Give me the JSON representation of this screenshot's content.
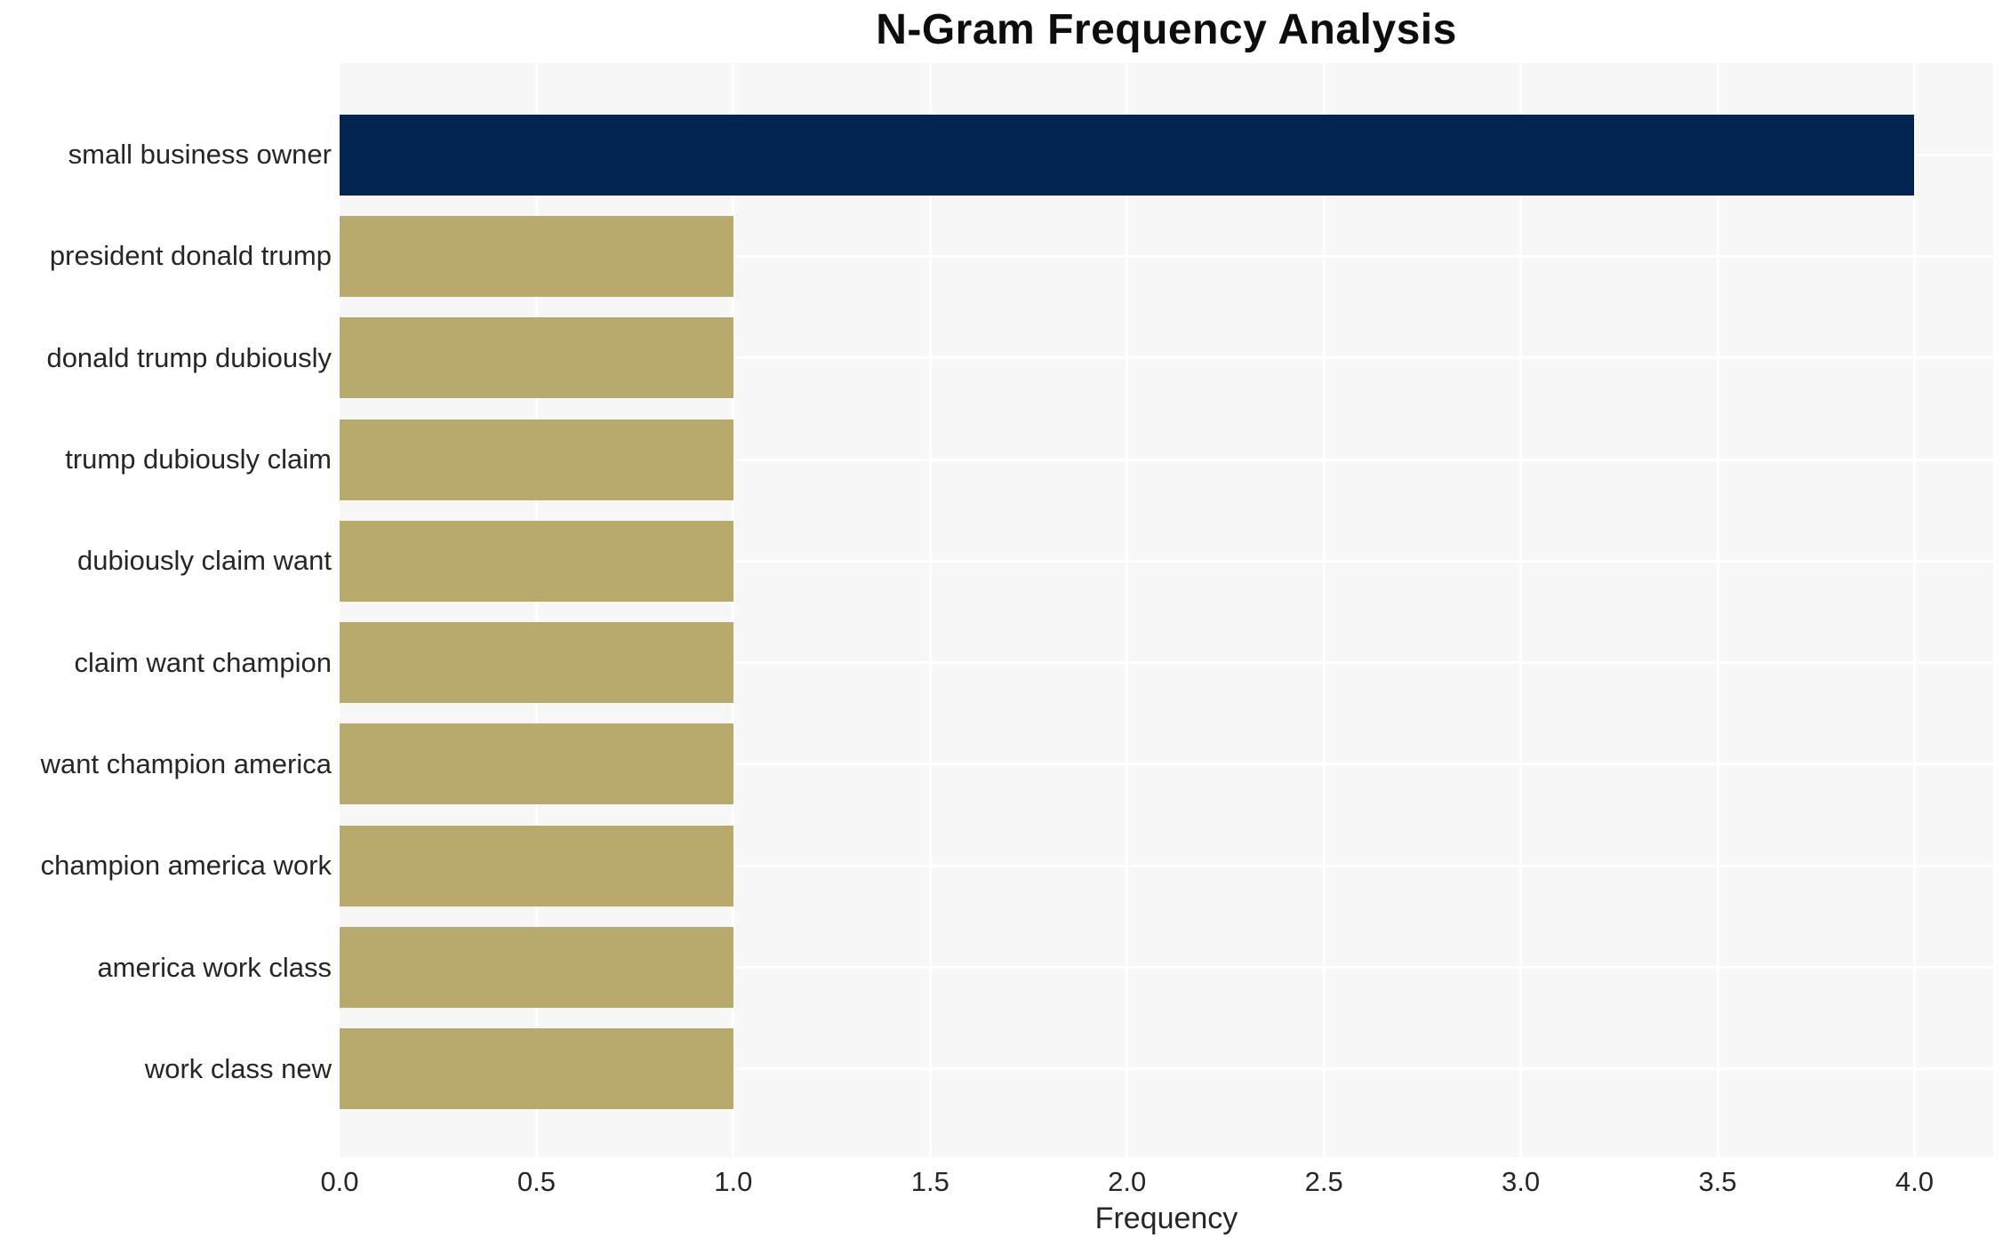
{
  "chart_data": {
    "type": "bar",
    "orientation": "horizontal",
    "title": "N-Gram Frequency Analysis",
    "xlabel": "Frequency",
    "ylabel": "",
    "categories": [
      "small business owner",
      "president donald trump",
      "donald trump dubiously",
      "trump dubiously claim",
      "dubiously claim want",
      "claim want champion",
      "want champion america",
      "champion america work",
      "america work class",
      "work class new"
    ],
    "values": [
      4,
      1,
      1,
      1,
      1,
      1,
      1,
      1,
      1,
      1
    ],
    "bar_colors": [
      "#012550",
      "#b7aa6c",
      "#b7aa6c",
      "#b7aa6c",
      "#b7aa6c",
      "#b7aa6c",
      "#b7aa6c",
      "#b7aa6c",
      "#b7aa6c",
      "#b7aa6c"
    ],
    "xlim": [
      0,
      4.2
    ],
    "xticks": [
      0.0,
      0.5,
      1.0,
      1.5,
      2.0,
      2.5,
      3.0,
      3.5,
      4.0
    ],
    "xtick_labels": [
      "0.0",
      "0.5",
      "1.0",
      "1.5",
      "2.0",
      "2.5",
      "3.0",
      "3.5",
      "4.0"
    ],
    "grid": true,
    "grid_color": "#ffffff",
    "plot_bg": "#f7f7f7",
    "legend": false
  }
}
